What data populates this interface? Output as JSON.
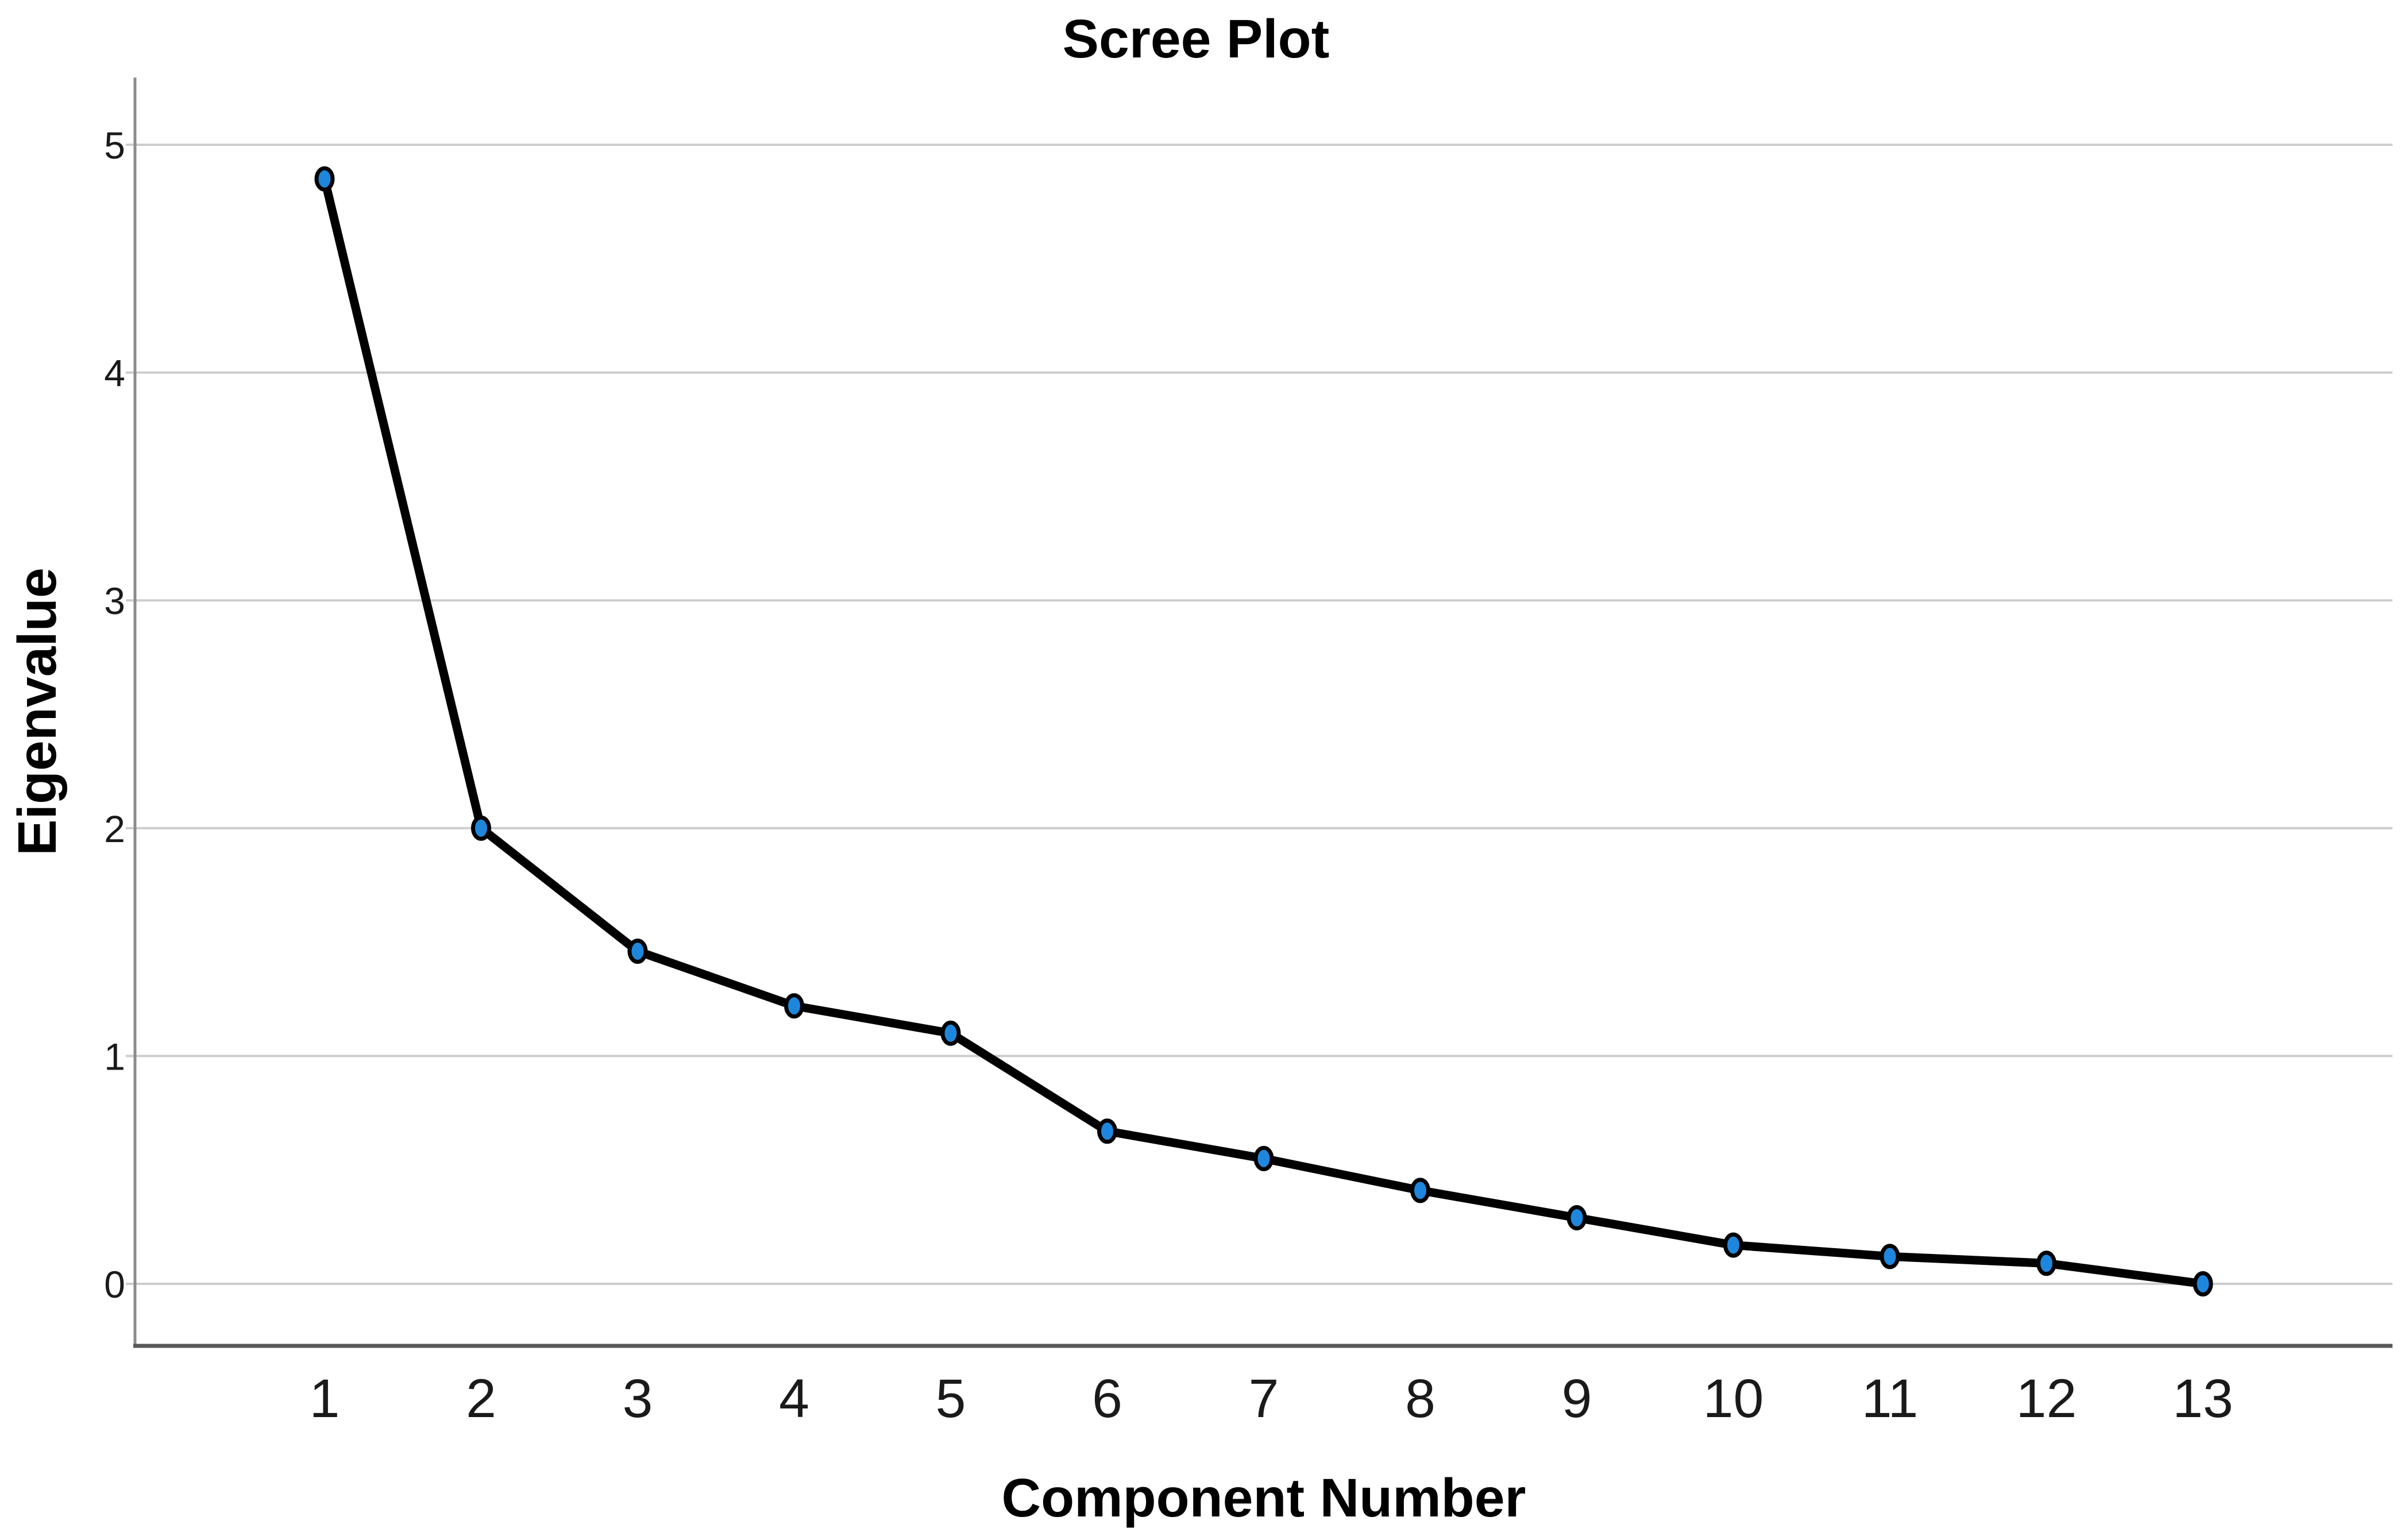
{
  "chart_data": {
    "type": "line",
    "title": "Scree Plot",
    "xlabel": "Component Number",
    "ylabel": "Eigenvalue",
    "categories": [
      "1",
      "2",
      "3",
      "4",
      "5",
      "6",
      "7",
      "8",
      "9",
      "10",
      "11",
      "12",
      "13"
    ],
    "series": [
      {
        "name": "Eigenvalue",
        "values": [
          4.85,
          2.0,
          1.46,
          1.22,
          1.1,
          0.67,
          0.55,
          0.41,
          0.29,
          0.17,
          0.12,
          0.09,
          0.0
        ]
      }
    ],
    "yticks": [
      0,
      1,
      2,
      3,
      4,
      5
    ],
    "ylim": [
      -0.27,
      5.3
    ],
    "xlim_categories": [
      1,
      13
    ],
    "grid": "horizontal-only",
    "legend": "none",
    "marker_shape": "ellipse",
    "colors": {
      "marker_fill": "#1e87dd",
      "marker_stroke": "#000000",
      "line": "#000000",
      "gridline": "#cdcdcd",
      "y_axis": "#8c8c8c",
      "x_axis_frame": "#595959",
      "title_text": "#000000",
      "tick_text": "#1a1a1a",
      "background": "#ffffff"
    }
  }
}
